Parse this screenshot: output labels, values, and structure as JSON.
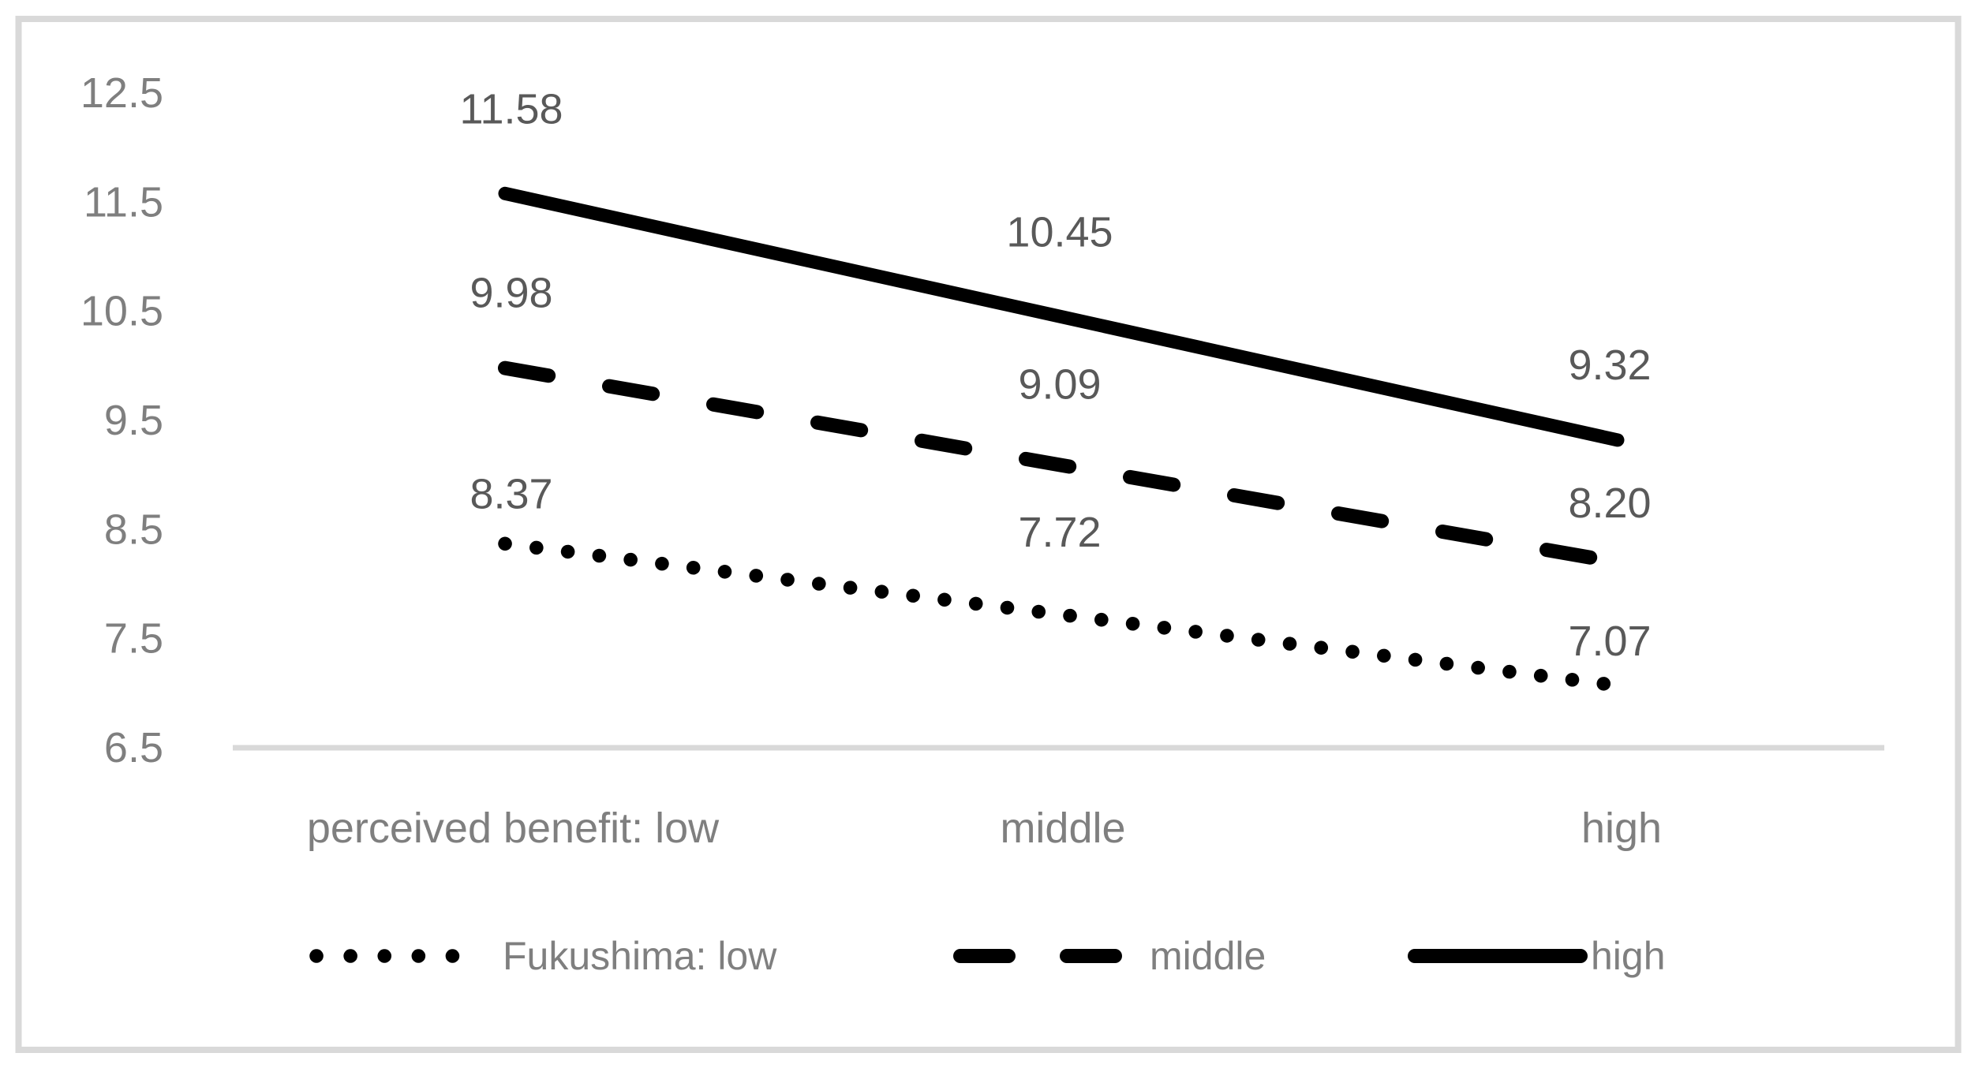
{
  "figure": {
    "background_color": "#ffffff",
    "border_color": "#d9d9d9",
    "axis_line_color": "#d9d9d9",
    "series_color": "#000000",
    "axis_text_color": "#7f7f7f",
    "data_label_color": "#595959"
  },
  "chart_data": {
    "type": "line",
    "categories": [
      "perceived benefit: low",
      "middle",
      "high"
    ],
    "series": [
      {
        "name": "Fukushima: low",
        "dash": "dotted",
        "values": [
          8.37,
          7.72,
          7.07
        ],
        "labels": [
          "8.37",
          "7.72",
          "7.07"
        ]
      },
      {
        "name": "middle",
        "dash": "dashed",
        "values": [
          9.98,
          9.09,
          8.2
        ],
        "labels": [
          "9.98",
          "9.09",
          "8.20"
        ]
      },
      {
        "name": "high",
        "dash": "solid",
        "values": [
          11.58,
          10.45,
          9.32
        ],
        "labels": [
          "11.58",
          "10.45",
          "9.32"
        ]
      }
    ],
    "y_ticks": [
      "12.5",
      "11.5",
      "10.5",
      "9.5",
      "8.5",
      "7.5",
      "6.5"
    ],
    "y_tick_values": [
      12.5,
      11.5,
      10.5,
      9.5,
      8.5,
      7.5,
      6.5
    ],
    "ylim": [
      6.5,
      12.5
    ],
    "grid": false,
    "data_labels": true,
    "legend_position": "bottom"
  }
}
